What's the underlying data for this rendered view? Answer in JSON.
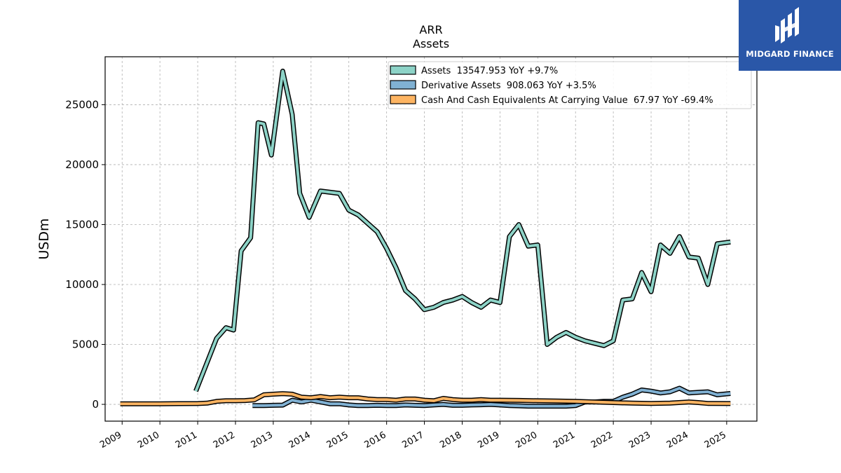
{
  "brand": {
    "name": "MIDGARD FINANCE",
    "color": "#2a57a8"
  },
  "chart_data": {
    "type": "line",
    "title": "ARR",
    "subtitle": "Assets",
    "xlabel": "",
    "ylabel": "USDm",
    "xlim": [
      2008.55,
      2025.8
    ],
    "ylim": [
      -1400,
      29000
    ],
    "grid": true,
    "legend_position": "top-right",
    "x_ticks": [
      "2009",
      "2010",
      "2011",
      "2012",
      "2013",
      "2014",
      "2015",
      "2016",
      "2017",
      "2018",
      "2019",
      "2020",
      "2021",
      "2022",
      "2023",
      "2024",
      "2025"
    ],
    "y_ticks": [
      0,
      5000,
      10000,
      15000,
      20000,
      25000
    ],
    "y_tick_labels": [
      "0",
      "5000",
      "10000",
      "15000",
      "20000",
      "25000"
    ],
    "series": [
      {
        "name": "Assets  13547.953 YoY +9.7%",
        "color": "#8dd3c7",
        "points": [
          [
            2010.95,
            1100
          ],
          [
            2011.5,
            5500
          ],
          [
            2011.75,
            6400
          ],
          [
            2011.95,
            6200
          ],
          [
            2012.15,
            12800
          ],
          [
            2012.4,
            13900
          ],
          [
            2012.6,
            23500
          ],
          [
            2012.75,
            23400
          ],
          [
            2012.95,
            20800
          ],
          [
            2013.25,
            27800
          ],
          [
            2013.5,
            24200
          ],
          [
            2013.7,
            17600
          ],
          [
            2013.95,
            15600
          ],
          [
            2014.25,
            17800
          ],
          [
            2014.75,
            17600
          ],
          [
            2015.0,
            16200
          ],
          [
            2015.25,
            15800
          ],
          [
            2015.5,
            15100
          ],
          [
            2015.75,
            14400
          ],
          [
            2016.0,
            13000
          ],
          [
            2016.25,
            11400
          ],
          [
            2016.5,
            9500
          ],
          [
            2016.75,
            8800
          ],
          [
            2017.0,
            7900
          ],
          [
            2017.25,
            8100
          ],
          [
            2017.5,
            8500
          ],
          [
            2017.75,
            8700
          ],
          [
            2018.0,
            9000
          ],
          [
            2018.25,
            8500
          ],
          [
            2018.5,
            8100
          ],
          [
            2018.75,
            8700
          ],
          [
            2019.0,
            8500
          ],
          [
            2019.25,
            14000
          ],
          [
            2019.5,
            15000
          ],
          [
            2019.75,
            13200
          ],
          [
            2020.0,
            13300
          ],
          [
            2020.25,
            5000
          ],
          [
            2020.5,
            5600
          ],
          [
            2020.75,
            6000
          ],
          [
            2021.0,
            5600
          ],
          [
            2021.25,
            5300
          ],
          [
            2021.5,
            5100
          ],
          [
            2021.75,
            4900
          ],
          [
            2022.0,
            5300
          ],
          [
            2022.25,
            8700
          ],
          [
            2022.5,
            8800
          ],
          [
            2022.75,
            11000
          ],
          [
            2023.0,
            9400
          ],
          [
            2023.25,
            13300
          ],
          [
            2023.5,
            12600
          ],
          [
            2023.75,
            14000
          ],
          [
            2024.0,
            12300
          ],
          [
            2024.25,
            12200
          ],
          [
            2024.5,
            10000
          ],
          [
            2024.75,
            13400
          ],
          [
            2025.1,
            13548
          ]
        ]
      },
      {
        "name": "Derivative Assets  908.063 YoY +3.5%",
        "color": "#80b1d3",
        "points": [
          [
            2012.45,
            -100
          ],
          [
            2012.75,
            -100
          ],
          [
            2013.0,
            -80
          ],
          [
            2013.25,
            -60
          ],
          [
            2013.5,
            350
          ],
          [
            2013.75,
            200
          ],
          [
            2014.0,
            350
          ],
          [
            2014.25,
            200
          ],
          [
            2014.5,
            50
          ],
          [
            2014.75,
            50
          ],
          [
            2015.0,
            -50
          ],
          [
            2015.25,
            -100
          ],
          [
            2015.5,
            -100
          ],
          [
            2015.75,
            -80
          ],
          [
            2016.0,
            -100
          ],
          [
            2016.25,
            -100
          ],
          [
            2016.5,
            -50
          ],
          [
            2016.75,
            -80
          ],
          [
            2017.0,
            -100
          ],
          [
            2017.25,
            -50
          ],
          [
            2017.5,
            0
          ],
          [
            2017.75,
            -80
          ],
          [
            2018.0,
            -80
          ],
          [
            2018.25,
            -50
          ],
          [
            2018.5,
            -30
          ],
          [
            2018.75,
            0
          ],
          [
            2019.0,
            -50
          ],
          [
            2019.25,
            -100
          ],
          [
            2019.5,
            -120
          ],
          [
            2019.75,
            -150
          ],
          [
            2020.0,
            -150
          ],
          [
            2020.25,
            -150
          ],
          [
            2020.5,
            -150
          ],
          [
            2020.75,
            -150
          ],
          [
            2021.0,
            -100
          ],
          [
            2021.25,
            200
          ],
          [
            2021.5,
            200
          ],
          [
            2021.75,
            250
          ],
          [
            2022.0,
            250
          ],
          [
            2022.25,
            600
          ],
          [
            2022.5,
            850
          ],
          [
            2022.75,
            1200
          ],
          [
            2023.0,
            1100
          ],
          [
            2023.25,
            950
          ],
          [
            2023.5,
            1050
          ],
          [
            2023.75,
            1350
          ],
          [
            2024.0,
            950
          ],
          [
            2024.25,
            1000
          ],
          [
            2024.5,
            1050
          ],
          [
            2024.75,
            800
          ],
          [
            2025.1,
            908
          ]
        ]
      },
      {
        "name": "Cash And Cash Equivalents At Carrying Value  67.97 YoY -69.4%",
        "color": "#fdb462",
        "points": [
          [
            2008.95,
            50
          ],
          [
            2010.0,
            50
          ],
          [
            2010.5,
            60
          ],
          [
            2011.0,
            70
          ],
          [
            2011.25,
            100
          ],
          [
            2011.5,
            250
          ],
          [
            2011.75,
            300
          ],
          [
            2012.0,
            300
          ],
          [
            2012.25,
            320
          ],
          [
            2012.5,
            380
          ],
          [
            2012.75,
            800
          ],
          [
            2013.0,
            850
          ],
          [
            2013.25,
            900
          ],
          [
            2013.5,
            850
          ],
          [
            2013.75,
            600
          ],
          [
            2014.0,
            550
          ],
          [
            2014.25,
            650
          ],
          [
            2014.5,
            550
          ],
          [
            2014.75,
            600
          ],
          [
            2015.0,
            550
          ],
          [
            2015.25,
            550
          ],
          [
            2015.5,
            450
          ],
          [
            2015.75,
            400
          ],
          [
            2016.0,
            400
          ],
          [
            2016.25,
            350
          ],
          [
            2016.5,
            450
          ],
          [
            2016.75,
            450
          ],
          [
            2017.0,
            350
          ],
          [
            2017.25,
            300
          ],
          [
            2017.5,
            500
          ],
          [
            2017.75,
            400
          ],
          [
            2018.0,
            350
          ],
          [
            2018.25,
            350
          ],
          [
            2018.5,
            400
          ],
          [
            2018.75,
            350
          ],
          [
            2019.0,
            350
          ],
          [
            2019.5,
            330
          ],
          [
            2020.0,
            300
          ],
          [
            2020.5,
            280
          ],
          [
            2021.0,
            250
          ],
          [
            2021.5,
            200
          ],
          [
            2022.0,
            150
          ],
          [
            2022.5,
            100
          ],
          [
            2023.0,
            80
          ],
          [
            2023.5,
            100
          ],
          [
            2024.0,
            200
          ],
          [
            2024.25,
            150
          ],
          [
            2024.5,
            80
          ],
          [
            2025.1,
            68
          ]
        ]
      }
    ]
  }
}
